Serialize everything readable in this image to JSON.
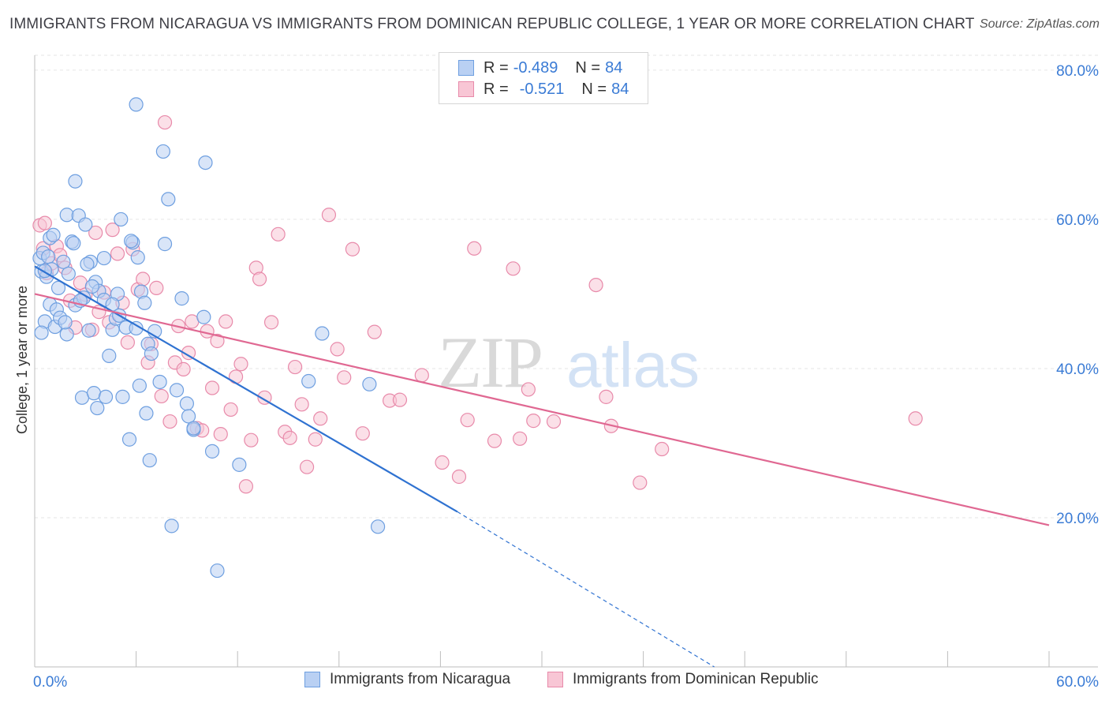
{
  "header": {
    "title": "IMMIGRANTS FROM NICARAGUA VS IMMIGRANTS FROM DOMINICAN REPUBLIC COLLEGE, 1 YEAR OR MORE CORRELATION CHART",
    "source": "Source: ZipAtlas.com"
  },
  "watermark": {
    "zip": "ZIP",
    "atlas": "atlas"
  },
  "legend": {
    "rows": [
      {
        "r_label": "R =",
        "r_value": "-0.489",
        "n_label": "N =",
        "n_value": "84"
      },
      {
        "r_label": "R =",
        "r_value": "-0.521",
        "n_label": "N =",
        "n_value": "84"
      }
    ]
  },
  "colors": {
    "blue_fill": "#b9d0f3",
    "blue_stroke": "#6e9fe0",
    "blue_line": "#2f72d1",
    "pink_fill": "#f8c6d5",
    "pink_stroke": "#e88aaa",
    "pink_line": "#e06892",
    "grid": "#e6e6e6",
    "tick_text": "#3a7bd5"
  },
  "chart_data": {
    "type": "scatter",
    "title": "IMMIGRANTS FROM NICARAGUA VS IMMIGRANTS FROM DOMINICAN REPUBLIC COLLEGE, 1 YEAR OR MORE CORRELATION CHART",
    "xlabel": "",
    "ylabel": "College, 1 year or more",
    "xlim": [
      0,
      60
    ],
    "ylim": [
      0,
      82
    ],
    "x_tick_labels": [
      "0.0%",
      "60.0%"
    ],
    "y_ticks": [
      20,
      40,
      60,
      80
    ],
    "y_tick_labels": [
      "20.0%",
      "40.0%",
      "60.0%",
      "80.0%"
    ],
    "grid": true,
    "legend_position": "top-center",
    "series": [
      {
        "name": "Immigrants from Nicaragua",
        "r": -0.489,
        "n": 84,
        "points": [
          [
            0.3,
            54.8
          ],
          [
            0.4,
            53.0
          ],
          [
            0.5,
            55.5
          ],
          [
            0.6,
            46.3
          ],
          [
            0.7,
            52.3
          ],
          [
            0.8,
            55.0
          ],
          [
            0.9,
            57.5
          ],
          [
            0.9,
            48.6
          ],
          [
            1.0,
            53.3
          ],
          [
            1.2,
            45.6
          ],
          [
            1.3,
            47.9
          ],
          [
            1.4,
            50.8
          ],
          [
            1.5,
            46.8
          ],
          [
            1.7,
            54.3
          ],
          [
            1.9,
            44.6
          ],
          [
            1.9,
            60.6
          ],
          [
            2.2,
            57.0
          ],
          [
            2.3,
            56.8
          ],
          [
            2.4,
            48.5
          ],
          [
            2.4,
            65.1
          ],
          [
            2.6,
            60.5
          ],
          [
            2.8,
            36.1
          ],
          [
            2.9,
            49.5
          ],
          [
            3.0,
            59.3
          ],
          [
            3.2,
            45.1
          ],
          [
            3.3,
            54.3
          ],
          [
            3.5,
            36.7
          ],
          [
            3.6,
            51.6
          ],
          [
            3.7,
            34.7
          ],
          [
            3.8,
            50.4
          ],
          [
            4.1,
            49.2
          ],
          [
            4.1,
            54.8
          ],
          [
            4.2,
            36.2
          ],
          [
            4.4,
            41.7
          ],
          [
            4.6,
            45.2
          ],
          [
            4.8,
            46.7
          ],
          [
            4.9,
            50.0
          ],
          [
            5.1,
            60.0
          ],
          [
            5.2,
            36.2
          ],
          [
            5.4,
            45.5
          ],
          [
            5.6,
            30.5
          ],
          [
            5.8,
            56.9
          ],
          [
            6.0,
            45.4
          ],
          [
            6.2,
            37.7
          ],
          [
            6.3,
            50.3
          ],
          [
            6.5,
            48.8
          ],
          [
            6.6,
            34.0
          ],
          [
            6.7,
            43.3
          ],
          [
            6.8,
            27.7
          ],
          [
            6.9,
            42.0
          ],
          [
            7.1,
            45.0
          ],
          [
            7.4,
            38.2
          ],
          [
            7.6,
            69.1
          ],
          [
            7.7,
            56.7
          ],
          [
            7.9,
            62.7
          ],
          [
            8.1,
            18.9
          ],
          [
            8.4,
            37.1
          ],
          [
            8.7,
            49.4
          ],
          [
            9.0,
            35.3
          ],
          [
            9.1,
            33.6
          ],
          [
            9.4,
            31.8
          ],
          [
            10.0,
            46.9
          ],
          [
            10.1,
            67.6
          ],
          [
            10.5,
            28.9
          ],
          [
            10.8,
            12.9
          ],
          [
            12.1,
            27.1
          ],
          [
            5.7,
            57.1
          ],
          [
            6.0,
            75.4
          ],
          [
            16.2,
            38.3
          ],
          [
            17.0,
            44.7
          ],
          [
            19.8,
            37.9
          ],
          [
            20.3,
            18.8
          ],
          [
            0.6,
            53.1
          ],
          [
            1.1,
            57.9
          ],
          [
            2.0,
            52.7
          ],
          [
            2.7,
            49.1
          ],
          [
            3.4,
            51.0
          ],
          [
            4.6,
            48.6
          ],
          [
            5.0,
            47.1
          ],
          [
            0.4,
            44.8
          ],
          [
            1.8,
            46.2
          ],
          [
            3.1,
            54.0
          ],
          [
            6.1,
            54.9
          ],
          [
            9.4,
            32.0
          ]
        ],
        "trend": {
          "x0": 0.0,
          "y0": 53.7,
          "x1": 25.0,
          "y1": 20.8,
          "dash_to_x": 40.2,
          "dash_to_y": 0.0
        }
      },
      {
        "name": "Immigrants from Dominican Republic",
        "r": -0.521,
        "n": 84,
        "points": [
          [
            0.3,
            59.2
          ],
          [
            0.5,
            56.1
          ],
          [
            0.7,
            52.8
          ],
          [
            1.0,
            54.1
          ],
          [
            1.3,
            56.4
          ],
          [
            1.5,
            55.2
          ],
          [
            1.8,
            53.5
          ],
          [
            2.1,
            49.1
          ],
          [
            2.4,
            45.5
          ],
          [
            2.7,
            51.5
          ],
          [
            3.0,
            49.9
          ],
          [
            3.4,
            45.2
          ],
          [
            3.6,
            58.2
          ],
          [
            3.8,
            47.6
          ],
          [
            4.1,
            50.2
          ],
          [
            4.4,
            46.2
          ],
          [
            4.6,
            58.6
          ],
          [
            4.9,
            55.4
          ],
          [
            5.2,
            48.8
          ],
          [
            5.5,
            43.5
          ],
          [
            5.8,
            56.0
          ],
          [
            6.1,
            50.6
          ],
          [
            6.4,
            52.0
          ],
          [
            6.7,
            40.8
          ],
          [
            6.9,
            43.3
          ],
          [
            7.2,
            50.8
          ],
          [
            7.5,
            36.3
          ],
          [
            7.7,
            73.0
          ],
          [
            8.0,
            32.9
          ],
          [
            8.3,
            40.8
          ],
          [
            8.5,
            45.7
          ],
          [
            8.8,
            39.9
          ],
          [
            9.1,
            42.1
          ],
          [
            9.3,
            46.3
          ],
          [
            9.6,
            32.0
          ],
          [
            9.9,
            31.7
          ],
          [
            10.2,
            45.0
          ],
          [
            10.5,
            37.4
          ],
          [
            10.8,
            43.7
          ],
          [
            11.0,
            31.2
          ],
          [
            11.3,
            46.3
          ],
          [
            11.6,
            34.5
          ],
          [
            11.9,
            38.9
          ],
          [
            12.2,
            40.6
          ],
          [
            12.5,
            24.2
          ],
          [
            12.8,
            30.4
          ],
          [
            13.1,
            53.5
          ],
          [
            13.3,
            52.0
          ],
          [
            13.6,
            36.1
          ],
          [
            14.0,
            46.2
          ],
          [
            14.4,
            58.0
          ],
          [
            14.8,
            31.5
          ],
          [
            15.1,
            30.7
          ],
          [
            15.4,
            40.2
          ],
          [
            15.8,
            35.2
          ],
          [
            16.1,
            26.8
          ],
          [
            16.6,
            30.5
          ],
          [
            16.9,
            33.3
          ],
          [
            17.4,
            60.6
          ],
          [
            17.9,
            42.6
          ],
          [
            18.3,
            38.8
          ],
          [
            18.8,
            56.0
          ],
          [
            19.4,
            31.3
          ],
          [
            20.1,
            44.9
          ],
          [
            21.0,
            35.7
          ],
          [
            21.6,
            35.8
          ],
          [
            22.9,
            39.1
          ],
          [
            24.1,
            27.4
          ],
          [
            25.1,
            25.5
          ],
          [
            25.6,
            33.1
          ],
          [
            26.0,
            56.1
          ],
          [
            27.2,
            30.3
          ],
          [
            28.3,
            53.4
          ],
          [
            28.7,
            30.6
          ],
          [
            29.2,
            37.2
          ],
          [
            29.5,
            33.0
          ],
          [
            30.7,
            32.9
          ],
          [
            33.2,
            51.2
          ],
          [
            33.8,
            36.2
          ],
          [
            34.1,
            32.3
          ],
          [
            35.8,
            24.7
          ],
          [
            37.1,
            29.2
          ],
          [
            52.1,
            33.3
          ],
          [
            0.6,
            59.5
          ]
        ],
        "trend": {
          "x0": 0.0,
          "y0": 50.0,
          "x1": 60.0,
          "y1": 19.0
        }
      }
    ]
  }
}
